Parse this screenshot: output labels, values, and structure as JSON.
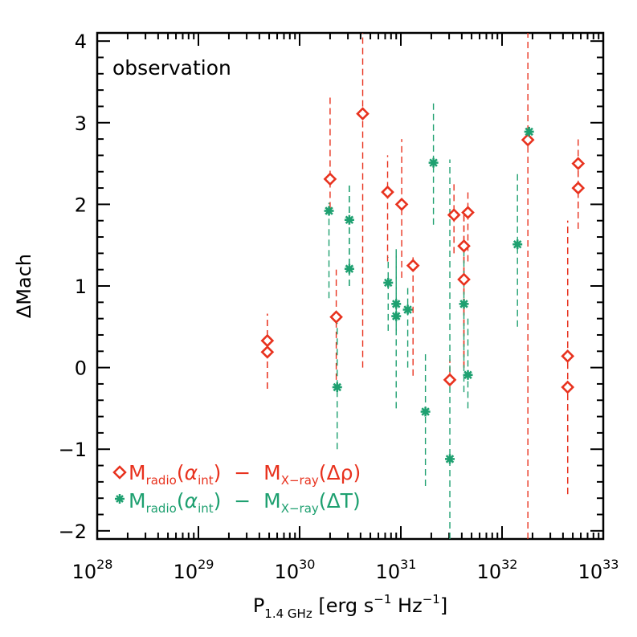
{
  "chart_data": {
    "type": "scatter",
    "xscale": "log",
    "xlim": [
      1e+28,
      1e+33
    ],
    "ylim": [
      -2.1,
      4.1
    ],
    "x_tick_labels": [
      {
        "base": "10",
        "exp": "28",
        "value": 1e+28
      },
      {
        "base": "10",
        "exp": "29",
        "value": 1e+29
      },
      {
        "base": "10",
        "exp": "30",
        "value": 1e+30
      },
      {
        "base": "10",
        "exp": "31",
        "value": 1e+31
      },
      {
        "base": "10",
        "exp": "32",
        "value": 1e+32
      },
      {
        "base": "10",
        "exp": "33",
        "value": 1e+33
      }
    ],
    "y_tick_labels": [
      {
        "label": "4",
        "value": 4
      },
      {
        "label": "3",
        "value": 3
      },
      {
        "label": "2",
        "value": 2
      },
      {
        "label": "1",
        "value": 1
      },
      {
        "label": "0",
        "value": 0
      },
      {
        "label": "−1",
        "value": -1
      },
      {
        "label": "−2",
        "value": -2
      }
    ],
    "xlabel": {
      "main": "P",
      "sub": "1.4 GHz",
      "rest_a": " [erg s",
      "sup1": "−1",
      "rest_b": " Hz",
      "sup2": "−1",
      "rest_c": "]"
    },
    "ylabel": "ΔMach",
    "annotation": "observation",
    "legend_position": "bottom-left",
    "series": [
      {
        "name": "red",
        "label": {
          "M": "M",
          "sub1": "radio",
          "paren1": "(",
          "alpha": "α",
          "sub2": "int",
          "paren1c": ")",
          "minus": "  −  ",
          "M2": "M",
          "sub3": "X−ray",
          "paren2": "(",
          "delta": "Δρ",
          "paren2c": ")"
        },
        "color": "#e8321e",
        "marker": "diamond",
        "points": [
          {
            "x": 4.8e+29,
            "y": 0.33,
            "ylo": -0.26,
            "yhi": 0.66
          },
          {
            "x": 4.8e+29,
            "y": 0.19,
            "ylo": -0.26,
            "yhi": 0.66
          },
          {
            "x": 2e+30,
            "y": 2.31,
            "ylo": 1.95,
            "yhi": 3.35
          },
          {
            "x": 2.3e+30,
            "y": 0.62,
            "ylo": -0.15,
            "yhi": 1.2
          },
          {
            "x": 4.2e+30,
            "y": 3.11,
            "ylo": 0.0,
            "yhi": 4.1
          },
          {
            "x": 7.4e+30,
            "y": 2.15,
            "ylo": 1.3,
            "yhi": 2.6
          },
          {
            "x": 1.02e+31,
            "y": 2.0,
            "ylo": 1.1,
            "yhi": 2.8
          },
          {
            "x": 1.32e+31,
            "y": 1.25,
            "ylo": -0.1,
            "yhi": 1.35
          },
          {
            "x": 3.05e+31,
            "y": -0.15,
            "ylo": -0.2,
            "yhi": 0.1
          },
          {
            "x": 3.35e+31,
            "y": 1.87,
            "ylo": 1.4,
            "yhi": 2.25
          },
          {
            "x": 4.2e+31,
            "y": 1.49,
            "ylo": 0.0,
            "yhi": 1.9
          },
          {
            "x": 4.2e+31,
            "y": 1.08,
            "ylo": 0.0,
            "yhi": 1.9
          },
          {
            "x": 4.6e+31,
            "y": 1.9,
            "ylo": 1.3,
            "yhi": 2.15
          },
          {
            "x": 1.8e+32,
            "y": 2.79,
            "ylo": -2.1,
            "yhi": 4.1
          },
          {
            "x": 4.45e+32,
            "y": 0.14,
            "ylo": -1.55,
            "yhi": 1.8
          },
          {
            "x": 4.45e+32,
            "y": -0.24,
            "ylo": -1.55,
            "yhi": 1.8
          },
          {
            "x": 5.65e+32,
            "y": 2.5,
            "ylo": 1.95,
            "yhi": 2.83
          },
          {
            "x": 5.65e+32,
            "y": 2.2,
            "ylo": 1.7,
            "yhi": 2.6
          }
        ]
      },
      {
        "name": "green",
        "label": {
          "M": "M",
          "sub1": "radio",
          "paren1": "(",
          "alpha": "α",
          "sub2": "int",
          "paren1c": ")",
          "minus": "  −  ",
          "M2": "M",
          "sub3": "X−ray",
          "paren2": "(",
          "delta": "ΔT",
          "paren2c": ")"
        },
        "color": "#1ea070",
        "marker": "asterisk",
        "points": [
          {
            "x": 1.95e+30,
            "y": 1.92,
            "ylo": 0.85,
            "yhi": 2.02
          },
          {
            "x": 2.35e+30,
            "y": -0.24,
            "ylo": -1.0,
            "yhi": 0.55
          },
          {
            "x": 3.1e+30,
            "y": 1.81,
            "ylo": 1.0,
            "yhi": 2.25
          },
          {
            "x": 3.1e+30,
            "y": 1.21,
            "ylo": 1.0,
            "yhi": 2.25
          },
          {
            "x": 7.5e+30,
            "y": 1.04,
            "ylo": 0.45,
            "yhi": 1.35
          },
          {
            "x": 9e+30,
            "y": 0.78,
            "ylo": 0.45,
            "yhi": 1.45
          },
          {
            "x": 9e+30,
            "y": 0.63,
            "ylo": -0.5,
            "yhi": 1.45
          },
          {
            "x": 1.17e+31,
            "y": 0.71,
            "ylo": 0.0,
            "yhi": 1.0
          },
          {
            "x": 1.75e+31,
            "y": -0.54,
            "ylo": -1.45,
            "yhi": 0.2
          },
          {
            "x": 2.1e+31,
            "y": 2.51,
            "ylo": 1.75,
            "yhi": 3.25
          },
          {
            "x": 3.05e+31,
            "y": -1.12,
            "ylo": -2.1,
            "yhi": 2.55
          },
          {
            "x": 4.2e+31,
            "y": 0.78,
            "ylo": -0.3,
            "yhi": 1.5
          },
          {
            "x": 4.6e+31,
            "y": -0.09,
            "ylo": -0.5,
            "yhi": 0.6
          },
          {
            "x": 1.42e+32,
            "y": 1.51,
            "ylo": 0.5,
            "yhi": 2.4
          },
          {
            "x": 1.85e+32,
            "y": 2.89,
            "ylo": 2.8,
            "yhi": 2.95
          }
        ]
      }
    ]
  }
}
